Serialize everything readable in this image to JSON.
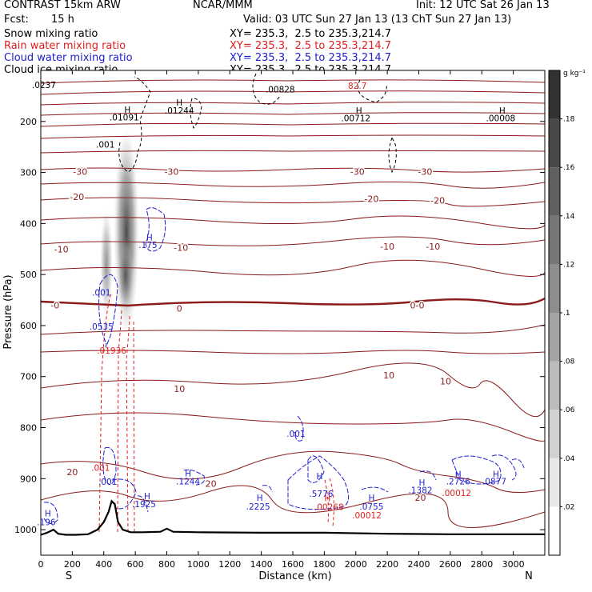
{
  "header": {
    "model": "CONTRAST 15km ARW",
    "forecast_label": "Fcst:",
    "forecast_value": "15 h",
    "center": "NCAR/MMM",
    "init": "Init: 12 UTC Sat 26 Jan 13",
    "valid": "Valid: 03 UTC Sun 27 Jan 13 (13 ChT Sun 27 Jan 13)",
    "xy_label": "XY= 235.3,  2.5 to 235.3,214.7"
  },
  "fields": [
    {
      "name": "Snow mixing ratio",
      "color": "#000000"
    },
    {
      "name": "Rain water mixing ratio",
      "color": "#e02020"
    },
    {
      "name": "Cloud water mixing ratio",
      "color": "#2020d0"
    },
    {
      "name": "Cloud ice mixing ratio",
      "color": "#000000"
    }
  ],
  "chart_data": {
    "type": "cross-section",
    "xlabel": "Distance (km)",
    "ylabel": "Pressure (hPa)",
    "xlim": [
      0,
      3200
    ],
    "ylim": [
      1050,
      100
    ],
    "x_ticks": [
      0,
      200,
      400,
      600,
      800,
      1000,
      1200,
      1400,
      1600,
      1800,
      2000,
      2200,
      2400,
      2600,
      2800,
      3000
    ],
    "y_ticks": [
      200,
      300,
      400,
      500,
      600,
      700,
      800,
      900,
      1000
    ],
    "endpoints": {
      "left": "S",
      "right": "N"
    },
    "colorbar": {
      "unit": "g kg⁻¹",
      "ticks": [
        ".02",
        ".04",
        ".06",
        ".08",
        ".1",
        ".12",
        ".14",
        ".16",
        ".18"
      ],
      "tick_values": [
        0.02,
        0.04,
        0.06,
        0.08,
        0.1,
        0.12,
        0.14,
        0.16,
        0.18
      ],
      "range": [
        0,
        0.2
      ]
    },
    "temperature_labels": [
      {
        "text": "-30",
        "x": 250,
        "p": 298
      },
      {
        "text": "-30",
        "x": 830,
        "p": 298
      },
      {
        "text": "-30",
        "x": 2010,
        "p": 298
      },
      {
        "text": "-30",
        "x": 2440,
        "p": 298
      },
      {
        "text": "-20",
        "x": 230,
        "p": 348
      },
      {
        "text": "-20",
        "x": 2100,
        "p": 352
      },
      {
        "text": "-20",
        "x": 2520,
        "p": 355
      },
      {
        "text": "-10",
        "x": 130,
        "p": 450
      },
      {
        "text": "-10",
        "x": 890,
        "p": 447
      },
      {
        "text": "-10",
        "x": 2200,
        "p": 445
      },
      {
        "text": "-10",
        "x": 2490,
        "p": 445
      },
      {
        "text": "-0",
        "x": 90,
        "p": 560
      },
      {
        "text": "0",
        "x": 880,
        "p": 566
      },
      {
        "text": "0-0",
        "x": 2390,
        "p": 560
      },
      {
        "text": "10",
        "x": 880,
        "p": 724
      },
      {
        "text": "10",
        "x": 2210,
        "p": 697
      },
      {
        "text": "10",
        "x": 2570,
        "p": 709
      },
      {
        "text": "20",
        "x": 200,
        "p": 887
      },
      {
        "text": "20",
        "x": 1080,
        "p": 910
      },
      {
        "text": "20",
        "x": 2410,
        "p": 937
      }
    ],
    "value_labels": [
      {
        "text": ".0237",
        "x": 20,
        "p": 128,
        "color": "black"
      },
      {
        "text": ".00828",
        "x": 1520,
        "p": 137,
        "color": "black"
      },
      {
        "text": "82.7",
        "x": 2010,
        "p": 130,
        "color": "red"
      },
      {
        "text": "H",
        "x": 550,
        "p": 177,
        "color": "black"
      },
      {
        "text": ".01091",
        "x": 530,
        "p": 192,
        "color": "black"
      },
      {
        "text": "H",
        "x": 880,
        "p": 163,
        "color": "black"
      },
      {
        "text": ".01244",
        "x": 880,
        "p": 178,
        "color": "black"
      },
      {
        "text": "H",
        "x": 2020,
        "p": 178,
        "color": "black"
      },
      {
        "text": ".00712",
        "x": 2000,
        "p": 193,
        "color": "black"
      },
      {
        "text": "H",
        "x": 2930,
        "p": 178,
        "color": "black"
      },
      {
        "text": ".00008",
        "x": 2920,
        "p": 193,
        "color": "black"
      },
      {
        "text": ".001",
        "x": 410,
        "p": 245,
        "color": "black"
      },
      {
        "text": "H",
        "x": 690,
        "p": 427,
        "color": "blue"
      },
      {
        "text": ".175",
        "x": 680,
        "p": 442,
        "color": "blue"
      },
      {
        "text": ".001",
        "x": 385,
        "p": 535,
        "color": "blue"
      },
      {
        "text": ".0535",
        "x": 385,
        "p": 602,
        "color": "blue"
      },
      {
        "text": ".01936",
        "x": 450,
        "p": 649,
        "color": "red"
      },
      {
        "text": ".001",
        "x": 380,
        "p": 878,
        "color": "red"
      },
      {
        "text": ".001",
        "x": 425,
        "p": 906,
        "color": "blue"
      },
      {
        "text": "H",
        "x": 935,
        "p": 889,
        "color": "blue"
      },
      {
        "text": ".1244",
        "x": 935,
        "p": 905,
        "color": "blue"
      },
      {
        "text": "H",
        "x": 675,
        "p": 934,
        "color": "blue"
      },
      {
        "text": ".1925",
        "x": 655,
        "p": 950,
        "color": "blue"
      },
      {
        "text": "H",
        "x": 45,
        "p": 968,
        "color": "blue"
      },
      {
        "text": ".196",
        "x": 35,
        "p": 985,
        "color": "blue"
      },
      {
        "text": ".001",
        "x": 1620,
        "p": 812,
        "color": "blue"
      },
      {
        "text": "H",
        "x": 1390,
        "p": 937,
        "color": "blue"
      },
      {
        "text": ".2225",
        "x": 1380,
        "p": 954,
        "color": "blue"
      },
      {
        "text": "H",
        "x": 1770,
        "p": 895,
        "color": "blue"
      },
      {
        "text": ".5776",
        "x": 1780,
        "p": 929,
        "color": "blue"
      },
      {
        "text": "H",
        "x": 1820,
        "p": 938,
        "color": "red"
      },
      {
        "text": ".00268",
        "x": 1830,
        "p": 955,
        "color": "red"
      },
      {
        "text": "H",
        "x": 2100,
        "p": 937,
        "color": "blue"
      },
      {
        "text": ".0755",
        "x": 2100,
        "p": 954,
        "color": "blue"
      },
      {
        "text": ".00012",
        "x": 2070,
        "p": 972,
        "color": "red"
      },
      {
        "text": "H",
        "x": 2420,
        "p": 907,
        "color": "blue"
      },
      {
        "text": ".1382",
        "x": 2410,
        "p": 922,
        "color": "blue"
      },
      {
        "text": "H",
        "x": 2650,
        "p": 891,
        "color": "blue"
      },
      {
        "text": ".2726",
        "x": 2650,
        "p": 905,
        "color": "blue"
      },
      {
        "text": ".00012",
        "x": 2640,
        "p": 928,
        "color": "red"
      },
      {
        "text": "H",
        "x": 2890,
        "p": 891,
        "color": "blue"
      },
      {
        "text": ".0877",
        "x": 2880,
        "p": 905,
        "color": "blue"
      }
    ],
    "terrain_km_hpa": [
      [
        0,
        1010
      ],
      [
        40,
        1006
      ],
      [
        80,
        1000
      ],
      [
        110,
        1008
      ],
      [
        160,
        1010
      ],
      [
        220,
        1010
      ],
      [
        300,
        1009
      ],
      [
        360,
        1000
      ],
      [
        400,
        985
      ],
      [
        430,
        965
      ],
      [
        450,
        944
      ],
      [
        470,
        950
      ],
      [
        490,
        985
      ],
      [
        520,
        1000
      ],
      [
        570,
        1005
      ],
      [
        650,
        1005
      ],
      [
        760,
        1004
      ],
      [
        800,
        998
      ],
      [
        840,
        1004
      ],
      [
        1000,
        1005
      ],
      [
        1400,
        1006
      ],
      [
        1800,
        1006
      ],
      [
        2200,
        1008
      ],
      [
        2600,
        1009
      ],
      [
        3000,
        1009
      ],
      [
        3200,
        1009
      ]
    ]
  }
}
